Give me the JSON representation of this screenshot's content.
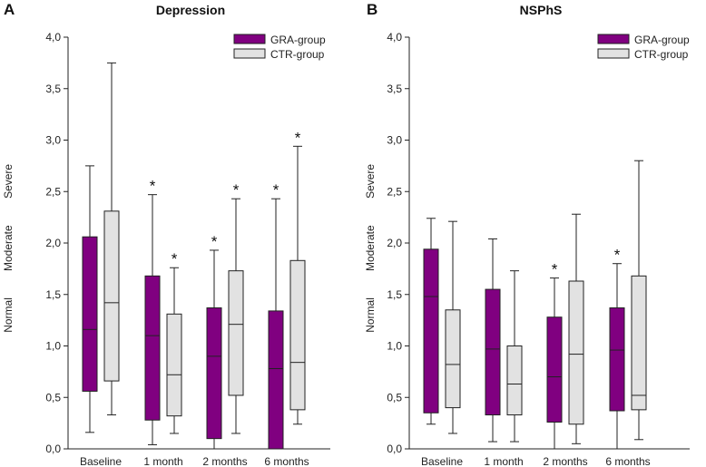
{
  "colors": {
    "gra": "#800080",
    "ctr": "#e2e2e2",
    "line": "#222222"
  },
  "chart_data": [
    {
      "type": "box",
      "panel_letter": "A",
      "title": "Depression",
      "ylabel_words": [
        "Normal",
        "Moderate",
        "Severe"
      ],
      "ylim": [
        0,
        4
      ],
      "yticks": [
        "0,0",
        "0,5",
        "1,0",
        "1,5",
        "2,0",
        "2,5",
        "3,0",
        "3,5",
        "4,0"
      ],
      "categories": [
        "Baseline",
        "1 month",
        "2 months",
        "6 months"
      ],
      "legend": [
        "GRA-group",
        "CTR-group"
      ],
      "series": [
        {
          "name": "GRA-group",
          "boxes": [
            {
              "min": 0.16,
              "q1": 0.56,
              "median": 1.16,
              "q3": 2.06,
              "max": 2.75,
              "star": ""
            },
            {
              "min": 0.04,
              "q1": 0.28,
              "median": 1.1,
              "q3": 1.68,
              "max": 2.47,
              "star": "*"
            },
            {
              "min": 0.0,
              "q1": 0.1,
              "median": 0.9,
              "q3": 1.37,
              "max": 1.93,
              "star": "*"
            },
            {
              "min": 0.0,
              "q1": 0.0,
              "median": 0.78,
              "q3": 1.34,
              "max": 2.43,
              "star": "*"
            }
          ]
        },
        {
          "name": "CTR-group",
          "boxes": [
            {
              "min": 0.33,
              "q1": 0.66,
              "median": 1.42,
              "q3": 2.31,
              "max": 3.75,
              "star": ""
            },
            {
              "min": 0.15,
              "q1": 0.32,
              "median": 0.72,
              "q3": 1.31,
              "max": 1.76,
              "star": "*"
            },
            {
              "min": 0.15,
              "q1": 0.52,
              "median": 1.21,
              "q3": 1.73,
              "max": 2.43,
              "star": "*"
            },
            {
              "min": 0.24,
              "q1": 0.38,
              "median": 0.84,
              "q3": 1.83,
              "max": 2.94,
              "star": "*"
            }
          ]
        }
      ]
    },
    {
      "type": "box",
      "panel_letter": "B",
      "title": "NSPhS",
      "ylabel_words": [
        "Normal",
        "Moderate",
        "Severe"
      ],
      "ylim": [
        0,
        4
      ],
      "yticks": [
        "0,0",
        "0,5",
        "1,0",
        "1,5",
        "2,0",
        "2,5",
        "3,0",
        "3,5",
        "4,0"
      ],
      "categories": [
        "Baseline",
        "1 month",
        "2 months",
        "6 months"
      ],
      "legend": [
        "GRA-group",
        "CTR-group"
      ],
      "series": [
        {
          "name": "GRA-group",
          "boxes": [
            {
              "min": 0.24,
              "q1": 0.35,
              "median": 1.48,
              "q3": 1.94,
              "max": 2.24,
              "star": ""
            },
            {
              "min": 0.07,
              "q1": 0.33,
              "median": 0.97,
              "q3": 1.55,
              "max": 2.04,
              "star": ""
            },
            {
              "min": 0.0,
              "q1": 0.26,
              "median": 0.7,
              "q3": 1.28,
              "max": 1.66,
              "star": "*"
            },
            {
              "min": 0.0,
              "q1": 0.37,
              "median": 0.96,
              "q3": 1.37,
              "max": 1.8,
              "star": "*"
            }
          ]
        },
        {
          "name": "CTR-group",
          "boxes": [
            {
              "min": 0.15,
              "q1": 0.4,
              "median": 0.82,
              "q3": 1.35,
              "max": 2.21,
              "star": ""
            },
            {
              "min": 0.07,
              "q1": 0.33,
              "median": 0.63,
              "q3": 1.0,
              "max": 1.73,
              "star": ""
            },
            {
              "min": 0.05,
              "q1": 0.24,
              "median": 0.92,
              "q3": 1.63,
              "max": 2.28,
              "star": ""
            },
            {
              "min": 0.09,
              "q1": 0.38,
              "median": 0.52,
              "q3": 1.68,
              "max": 2.8,
              "star": ""
            }
          ]
        }
      ]
    }
  ]
}
